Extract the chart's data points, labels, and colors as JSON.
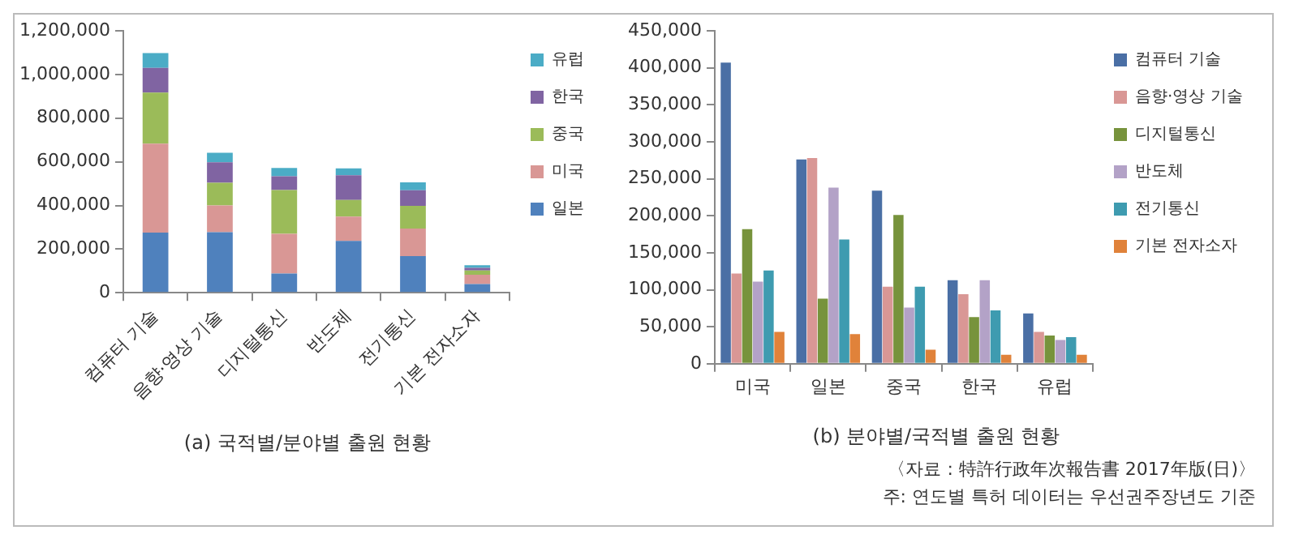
{
  "chart_data": [
    {
      "type": "bar",
      "title": "(a) 국적별/분야별 출원 현황",
      "categories": [
        "컴퓨터 기술",
        "음향·영상 기술",
        "디지털통신",
        "반도체",
        "전기통신",
        "기본 전자소자"
      ],
      "stacked": true,
      "legend": "right",
      "grid": false,
      "ylim": [
        0,
        1200000
      ],
      "yticks": [
        0,
        {
          "value": 200000,
          "label": "200,000"
        },
        {
          "value": 400000,
          "label": "400,000"
        },
        {
          "value": 600000,
          "label": "600,000"
        },
        {
          "value": 800000,
          "label": "800,000"
        },
        {
          "value": 1000000,
          "label": "1,000,000"
        },
        {
          "value": 1200000,
          "label": "1,200,000"
        }
      ],
      "series": [
        {
          "name": "일본",
          "color": "#4f81bd",
          "values": [
            276000,
            278000,
            88000,
            238000,
            168000,
            40000
          ]
        },
        {
          "name": "미국",
          "color": "#d99795",
          "values": [
            407000,
            122000,
            182000,
            111000,
            126000,
            43000
          ]
        },
        {
          "name": "중국",
          "color": "#9bbb59",
          "values": [
            234000,
            104000,
            201000,
            76000,
            104000,
            19000
          ]
        },
        {
          "name": "한국",
          "color": "#8064a2",
          "values": [
            113000,
            94000,
            63000,
            113000,
            72000,
            12000
          ]
        },
        {
          "name": "유럽",
          "color": "#4bacc6",
          "values": [
            68000,
            43000,
            38000,
            32000,
            36000,
            12000
          ]
        }
      ]
    },
    {
      "type": "bar",
      "title": "(b) 분야별/국적별 출원 현황",
      "categories": [
        "미국",
        "일본",
        "중국",
        "한국",
        "유럽"
      ],
      "legend": "right",
      "grid": false,
      "ylim": [
        0,
        450000
      ],
      "yticks": [
        0,
        {
          "value": 50000,
          "label": "50,000"
        },
        {
          "value": 100000,
          "label": "100,000"
        },
        {
          "value": 150000,
          "label": "150,000"
        },
        {
          "value": 200000,
          "label": "200,000"
        },
        {
          "value": 250000,
          "label": "250,000"
        },
        {
          "value": 300000,
          "label": "300,000"
        },
        {
          "value": 350000,
          "label": "350,000"
        },
        {
          "value": 400000,
          "label": "400,000"
        },
        {
          "value": 450000,
          "label": "450,000"
        }
      ],
      "annotations": [
        "〈자료 : 特許行政年次報告書 2017年版(日)〉",
        "주: 연도별 특허 데이터는 우선권주장년도 기준"
      ],
      "series": [
        {
          "name": "컴퓨터 기술",
          "color": "#4a6fa5",
          "values": [
            407000,
            276000,
            234000,
            113000,
            68000
          ]
        },
        {
          "name": "음향·영상 기술",
          "color": "#d99795",
          "values": [
            122000,
            278000,
            104000,
            94000,
            43000
          ]
        },
        {
          "name": "디지털통신",
          "color": "#77933c",
          "values": [
            182000,
            88000,
            201000,
            63000,
            38000
          ]
        },
        {
          "name": "반도체",
          "color": "#b3a2c7",
          "values": [
            111000,
            238000,
            76000,
            113000,
            32000
          ]
        },
        {
          "name": "전기통신",
          "color": "#3e9bb0",
          "values": [
            126000,
            168000,
            104000,
            72000,
            36000
          ]
        },
        {
          "name": "기본 전자소자",
          "color": "#e0823a",
          "values": [
            43000,
            40000,
            19000,
            12000,
            12000
          ]
        }
      ]
    }
  ]
}
